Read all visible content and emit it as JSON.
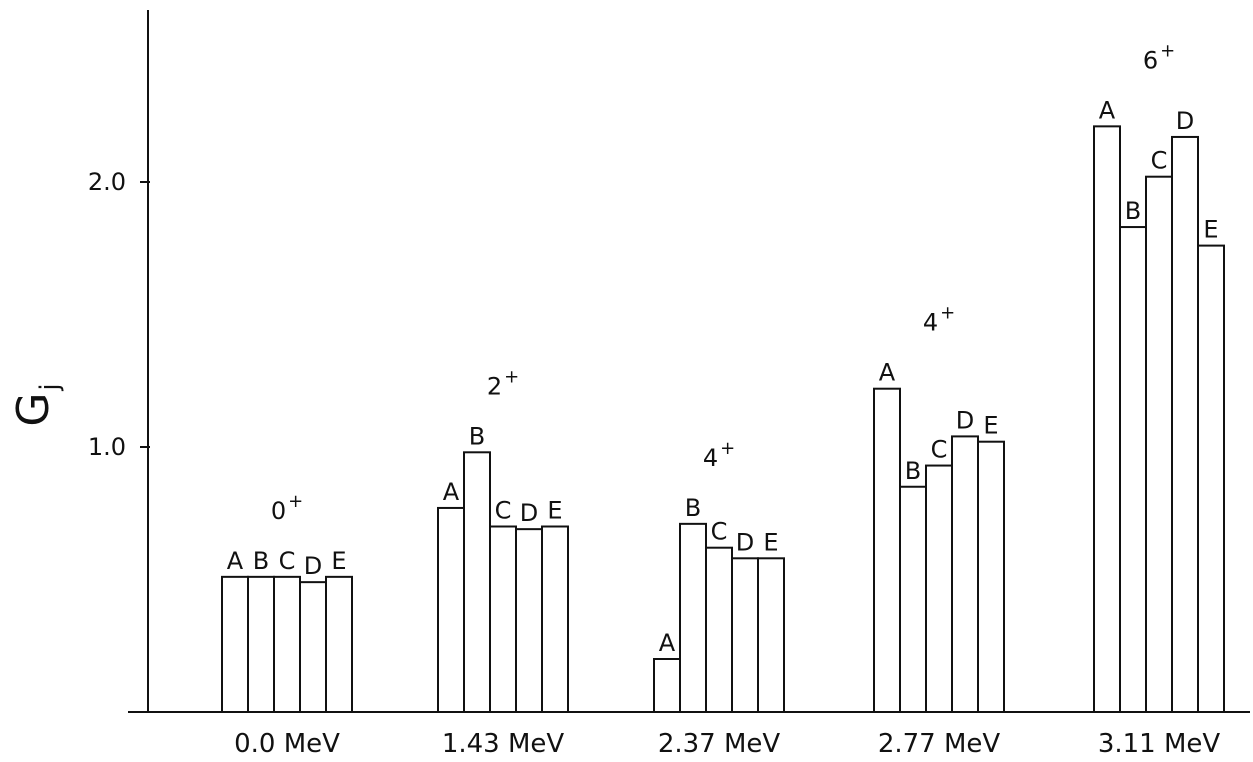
{
  "chart_data": {
    "type": "bar",
    "ylabel": "G",
    "ylabel_subscript": "j",
    "ylim": [
      0,
      2.6
    ],
    "yticks": [
      {
        "value": 1.0,
        "label": "1.0"
      },
      {
        "value": 2.0,
        "label": "2.0"
      }
    ],
    "grid": false,
    "categories": [
      "0.0 MeV",
      "1.43 MeV",
      "2.37 MeV",
      "2.77 MeV",
      "3.11 MeV"
    ],
    "groups": [
      {
        "category": "0.0 MeV",
        "spin_label": "0",
        "spin_sup": "+",
        "bars": [
          {
            "name": "A",
            "value": 0.51
          },
          {
            "name": "B",
            "value": 0.51
          },
          {
            "name": "C",
            "value": 0.51
          },
          {
            "name": "D",
            "value": 0.49
          },
          {
            "name": "E",
            "value": 0.51
          }
        ]
      },
      {
        "category": "1.43 MeV",
        "spin_label": "2",
        "spin_sup": "+",
        "bars": [
          {
            "name": "A",
            "value": 0.77
          },
          {
            "name": "B",
            "value": 0.98
          },
          {
            "name": "C",
            "value": 0.7
          },
          {
            "name": "D",
            "value": 0.69
          },
          {
            "name": "E",
            "value": 0.7
          }
        ]
      },
      {
        "category": "2.37 MeV",
        "spin_label": "4",
        "spin_sup": "+",
        "bars": [
          {
            "name": "A",
            "value": 0.2
          },
          {
            "name": "B",
            "value": 0.71
          },
          {
            "name": "C",
            "value": 0.62
          },
          {
            "name": "D",
            "value": 0.58
          },
          {
            "name": "E",
            "value": 0.58
          }
        ]
      },
      {
        "category": "2.77 MeV",
        "spin_label": "4",
        "spin_sup": "+",
        "bars": [
          {
            "name": "A",
            "value": 1.22
          },
          {
            "name": "B",
            "value": 0.85
          },
          {
            "name": "C",
            "value": 0.93
          },
          {
            "name": "D",
            "value": 1.04
          },
          {
            "name": "E",
            "value": 1.02
          }
        ]
      },
      {
        "category": "3.11 MeV",
        "spin_label": "6",
        "spin_sup": "+",
        "bars": [
          {
            "name": "A",
            "value": 2.21
          },
          {
            "name": "B",
            "value": 1.83
          },
          {
            "name": "C",
            "value": 2.02
          },
          {
            "name": "D",
            "value": 2.17
          },
          {
            "name": "E",
            "value": 1.76
          }
        ]
      }
    ]
  }
}
